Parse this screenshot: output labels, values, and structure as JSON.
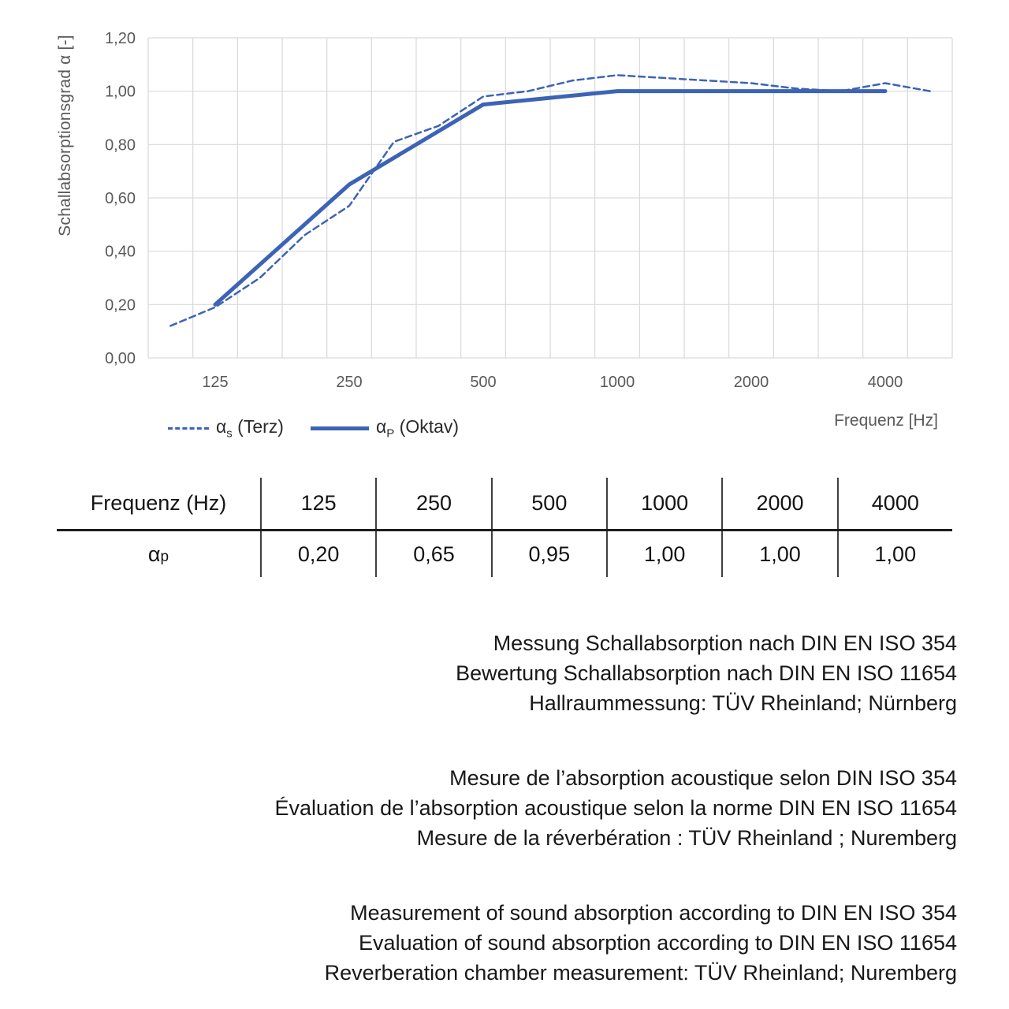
{
  "chart": {
    "y_axis_title": "Schallabsorptionsgrad α [-]",
    "x_axis_title": "Frequenz [Hz]",
    "legend": [
      {
        "alpha": "α",
        "sub": "s",
        "rest": " (Terz)",
        "style": "dashed"
      },
      {
        "alpha": "α",
        "sub": "P",
        "rest": " (Oktav)",
        "style": "solid"
      }
    ]
  },
  "chart_data": {
    "type": "line",
    "x_scale": "log-third-octave-categories",
    "x_categories": [
      100,
      125,
      160,
      200,
      250,
      315,
      400,
      500,
      630,
      800,
      1000,
      1250,
      1600,
      2000,
      2500,
      3150,
      4000,
      5000
    ],
    "xtick_indices": [
      1,
      4,
      7,
      10,
      13,
      16
    ],
    "xtick_labels": [
      "125",
      "250",
      "500",
      "1000",
      "2000",
      "4000"
    ],
    "xlabel": "Frequenz [Hz]",
    "ylabel": "Schallabsorptionsgrad α [-]",
    "ylim": [
      0,
      1.2
    ],
    "ytick_step": 0.2,
    "ytick_labels": [
      "0,00",
      "0,20",
      "0,40",
      "0,60",
      "0,80",
      "1,00",
      "1,20"
    ],
    "grid": true,
    "legend_position": "bottom-left",
    "series": [
      {
        "name": "αs (Terz)",
        "style": "dashed",
        "width": 2.5,
        "dash": "8 5",
        "x": [
          100,
          125,
          160,
          200,
          250,
          315,
          400,
          500,
          630,
          800,
          1000,
          1250,
          1600,
          2000,
          2500,
          3150,
          4000,
          5000
        ],
        "values": [
          0.12,
          0.19,
          0.3,
          0.46,
          0.57,
          0.81,
          0.87,
          0.98,
          1.0,
          1.04,
          1.06,
          1.05,
          1.04,
          1.03,
          1.01,
          1.0,
          1.03,
          1.0
        ]
      },
      {
        "name": "αp (Oktav)",
        "style": "solid",
        "width": 5,
        "x": [
          125,
          250,
          500,
          1000,
          2000,
          4000
        ],
        "values": [
          0.2,
          0.65,
          0.95,
          1.0,
          1.0,
          1.0
        ]
      }
    ],
    "colors": {
      "line": "#3c63b5",
      "grid": "#d9d9d9",
      "tick_text": "#595959"
    }
  },
  "table": {
    "header_label": "Frequenz (Hz)",
    "frequencies": [
      "125",
      "250",
      "500",
      "1000",
      "2000",
      "4000"
    ],
    "row_label": {
      "alpha": "α",
      "sub": "p"
    },
    "values": [
      "0,20",
      "0,65",
      "0,95",
      "1,00",
      "1,00",
      "1,00"
    ]
  },
  "notes": {
    "german": [
      "Messung Schallabsorption nach DIN EN ISO 354",
      "Bewertung Schallabsorption nach DIN EN ISO 11654",
      "Hallraummessung: TÜV Rheinland; Nürnberg"
    ],
    "french": [
      "Mesure de l’absorption acoustique selon DIN ISO 354",
      "Évaluation de l’absorption acoustique selon la norme DIN EN ISO 11654",
      "Mesure de la réverbération : TÜV Rheinland ; Nuremberg"
    ],
    "english": [
      "Measurement of sound absorption according to DIN EN ISO 354",
      "Evaluation of sound absorption according to DIN EN ISO 11654",
      "Reverberation chamber measurement: TÜV Rheinland; Nuremberg"
    ]
  }
}
